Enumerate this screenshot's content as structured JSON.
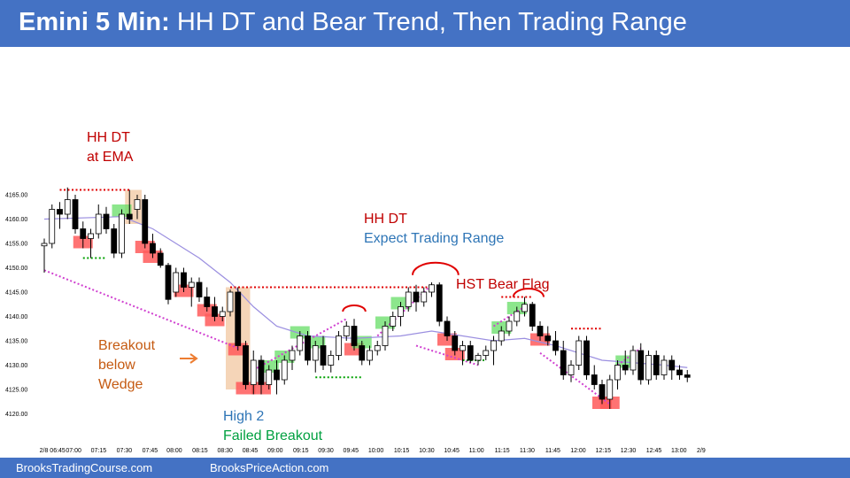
{
  "title": {
    "bold": "Emini 5 Min:",
    "rest": " HH DT and Bear Trend, Then Trading Range"
  },
  "footer": {
    "left": "BrooksTradingCourse.com",
    "right": "BrooksPriceAction.com"
  },
  "colors": {
    "banner": "#4472c4",
    "bull": "#ffffff",
    "bear": "#000000",
    "red_text": "#c00000",
    "blue_text": "#2e75b6",
    "green_text": "#00a040",
    "orange_text": "#c55a11",
    "red_box": "#ff5a5a",
    "green_box": "#66dd66",
    "ema": "#9b8fe0",
    "wedge_line": "#d040d0",
    "red_dots": "#e00000",
    "green_dots": "#00a000",
    "breakout_shade": "#f5d5b8"
  },
  "annotations": {
    "hh_dt_ema": [
      "HH DT",
      "at EMA"
    ],
    "hh_dt_range": {
      "line1": "HH DT",
      "line2": "Expect Trading Range"
    },
    "hst_bear_flag": "HST Bear Flag",
    "breakout_wedge": [
      "Breakout",
      "below",
      "Wedge"
    ],
    "high2": [
      "High 2",
      "Failed Breakout"
    ]
  },
  "chart_data": {
    "type": "candlestick",
    "title": "Emini 5 Min: HH DT and Bear Trend, Then Trading Range",
    "y_ticks": [
      "4120.00",
      "4125.00",
      "4130.00",
      "4135.00",
      "4140.00",
      "4145.00",
      "4150.00",
      "4155.00",
      "4160.00",
      "4165.00"
    ],
    "ylim": [
      4118,
      4172
    ],
    "x_ticks": [
      "2/8 06:45",
      "07:00",
      "07:15",
      "07:30",
      "07:45",
      "08:00",
      "08:15",
      "08:30",
      "08:45",
      "09:00",
      "09:15",
      "09:30",
      "09:45",
      "10:00",
      "10:15",
      "10:30",
      "10:45",
      "11:00",
      "11:15",
      "11:30",
      "11:45",
      "12:00",
      "12:15",
      "12:30",
      "12:45",
      "13:00",
      "2/9"
    ],
    "bars": [
      [
        4154.5,
        4156.0,
        4149.0,
        4155.0
      ],
      [
        4155.0,
        4163.0,
        4154.0,
        4162.0
      ],
      [
        4162.0,
        4163.5,
        4158.0,
        4161.0
      ],
      [
        4161.0,
        4166.5,
        4160.0,
        4164.0
      ],
      [
        4164.0,
        4165.0,
        4157.0,
        4158.0
      ],
      [
        4158.0,
        4159.5,
        4154.0,
        4156.0
      ],
      [
        4156.0,
        4158.0,
        4152.0,
        4157.0
      ],
      [
        4157.0,
        4163.0,
        4156.0,
        4161.0
      ],
      [
        4161.0,
        4162.5,
        4157.0,
        4158.0
      ],
      [
        4158.0,
        4159.0,
        4152.0,
        4153.0
      ],
      [
        4153.0,
        4162.0,
        4152.0,
        4161.0
      ],
      [
        4161.0,
        4166.0,
        4159.0,
        4160.0
      ],
      [
        4162.0,
        4165.0,
        4160.0,
        4164.0
      ],
      [
        4164.0,
        4165.0,
        4154.0,
        4155.0
      ],
      [
        4155.0,
        4157.0,
        4152.0,
        4153.0
      ],
      [
        4153.0,
        4154.0,
        4150.0,
        4150.5
      ],
      [
        4150.5,
        4151.0,
        4142.5,
        4143.5
      ],
      [
        4145.0,
        4150.0,
        4144.0,
        4149.0
      ],
      [
        4149.0,
        4150.0,
        4145.0,
        4146.0
      ],
      [
        4146.0,
        4148.0,
        4142.0,
        4147.0
      ],
      [
        4147.0,
        4148.0,
        4143.0,
        4144.0
      ],
      [
        4144.0,
        4146.0,
        4141.0,
        4142.0
      ],
      [
        4142.0,
        4144.0,
        4139.0,
        4140.0
      ],
      [
        4140.0,
        4142.0,
        4139.0,
        4141.0
      ],
      [
        4141.0,
        4145.5,
        4140.0,
        4145.0
      ],
      [
        4145.0,
        4146.0,
        4133.0,
        4134.0
      ],
      [
        4134.0,
        4135.0,
        4125.0,
        4126.0
      ],
      [
        4126.0,
        4133.0,
        4124.0,
        4131.0
      ],
      [
        4131.0,
        4132.0,
        4124.0,
        4126.0
      ],
      [
        4126.0,
        4130.0,
        4125.0,
        4129.0
      ],
      [
        4129.0,
        4131.0,
        4124.0,
        4127.0
      ],
      [
        4127.0,
        4132.0,
        4126.0,
        4131.0
      ],
      [
        4131.0,
        4134.0,
        4129.0,
        4133.0
      ],
      [
        4133.0,
        4137.0,
        4132.0,
        4136.0
      ],
      [
        4136.0,
        4137.0,
        4130.0,
        4131.0
      ],
      [
        4131.0,
        4135.0,
        4128.5,
        4134.0
      ],
      [
        4134.0,
        4136.0,
        4129.0,
        4130.0
      ],
      [
        4130.0,
        4133.0,
        4128.5,
        4132.0
      ],
      [
        4132.0,
        4137.0,
        4131.0,
        4136.0
      ],
      [
        4136.0,
        4139.0,
        4135.0,
        4138.0
      ],
      [
        4138.0,
        4139.5,
        4133.0,
        4134.0
      ],
      [
        4134.0,
        4135.0,
        4130.0,
        4131.0
      ],
      [
        4131.0,
        4134.0,
        4130.0,
        4133.0
      ],
      [
        4133.0,
        4135.0,
        4132.0,
        4134.0
      ],
      [
        4134.0,
        4139.0,
        4133.0,
        4138.0
      ],
      [
        4138.0,
        4141.0,
        4137.0,
        4140.0
      ],
      [
        4140.0,
        4143.0,
        4138.0,
        4142.0
      ],
      [
        4142.0,
        4146.0,
        4141.0,
        4145.0
      ],
      [
        4145.0,
        4146.5,
        4141.0,
        4143.0
      ],
      [
        4143.0,
        4146.0,
        4142.0,
        4145.0
      ],
      [
        4145.0,
        4147.0,
        4144.0,
        4146.5
      ],
      [
        4146.5,
        4147.0,
        4138.0,
        4139.0
      ],
      [
        4139.0,
        4140.0,
        4135.0,
        4136.0
      ],
      [
        4136.0,
        4137.0,
        4132.0,
        4133.0
      ],
      [
        4133.0,
        4135.0,
        4130.0,
        4134.0
      ],
      [
        4134.0,
        4135.0,
        4130.5,
        4131.0
      ],
      [
        4131.0,
        4132.5,
        4130.0,
        4132.0
      ],
      [
        4132.0,
        4134.0,
        4131.0,
        4133.0
      ],
      [
        4133.0,
        4136.0,
        4130.0,
        4135.0
      ],
      [
        4135.0,
        4138.0,
        4134.0,
        4137.0
      ],
      [
        4137.0,
        4140.0,
        4136.0,
        4139.0
      ],
      [
        4139.0,
        4142.0,
        4138.0,
        4141.0
      ],
      [
        4141.0,
        4144.0,
        4140.0,
        4142.5
      ],
      [
        4142.5,
        4143.0,
        4137.0,
        4138.0
      ],
      [
        4138.0,
        4139.0,
        4135.0,
        4136.0
      ],
      [
        4136.0,
        4138.0,
        4134.0,
        4135.0
      ],
      [
        4135.0,
        4137.0,
        4132.0,
        4133.0
      ],
      [
        4133.0,
        4135.0,
        4127.0,
        4128.0
      ],
      [
        4128.0,
        4131.0,
        4126.5,
        4130.0
      ],
      [
        4130.0,
        4136.0,
        4129.0,
        4135.0
      ],
      [
        4135.0,
        4136.0,
        4127.0,
        4128.0
      ],
      [
        4128.0,
        4130.0,
        4125.0,
        4126.0
      ],
      [
        4126.0,
        4127.0,
        4122.0,
        4123.0
      ],
      [
        4123.0,
        4128.0,
        4121.0,
        4127.0
      ],
      [
        4127.0,
        4131.0,
        4125.0,
        4130.0
      ],
      [
        4130.0,
        4133.0,
        4128.0,
        4129.0
      ],
      [
        4129.0,
        4134.0,
        4128.0,
        4133.0
      ],
      [
        4133.0,
        4134.5,
        4126.0,
        4127.0
      ],
      [
        4127.0,
        4133.0,
        4126.0,
        4132.0
      ],
      [
        4132.0,
        4133.0,
        4127.0,
        4128.0
      ],
      [
        4128.0,
        4132.0,
        4127.0,
        4131.0
      ],
      [
        4131.0,
        4132.0,
        4127.0,
        4129.0
      ],
      [
        4129.0,
        4130.0,
        4127.0,
        4128.0
      ],
      [
        4128.0,
        4129.0,
        4126.5,
        4127.5
      ]
    ],
    "ema": [
      [
        0,
        4160.0
      ],
      [
        10,
        4160.5
      ],
      [
        14,
        4158.0
      ],
      [
        20,
        4152.0
      ],
      [
        24,
        4147.0
      ],
      [
        27,
        4142.0
      ],
      [
        30,
        4138.0
      ],
      [
        34,
        4136.0
      ],
      [
        40,
        4135.5
      ],
      [
        46,
        4136.0
      ],
      [
        50,
        4137.0
      ],
      [
        54,
        4136.0
      ],
      [
        58,
        4135.0
      ],
      [
        62,
        4135.5
      ],
      [
        66,
        4134.0
      ],
      [
        72,
        4131.0
      ],
      [
        76,
        4130.5
      ],
      [
        80,
        4130.0
      ],
      [
        83,
        4129.5
      ]
    ],
    "bull_entry_boxes": [
      10,
      29,
      31,
      33,
      35,
      41,
      44,
      46,
      59,
      61,
      75
    ],
    "bear_entry_boxes": [
      5,
      13,
      14,
      18,
      21,
      22,
      25,
      26,
      28,
      40,
      52,
      53,
      64,
      72,
      73
    ],
    "wedge_lines": [
      [
        [
          0,
          4149.5
        ],
        [
          25,
          4133.5
        ]
      ],
      [
        [
          27,
          4129.0
        ],
        [
          39,
          4139.5
        ]
      ],
      [
        [
          43,
          4136.0
        ],
        [
          50,
          4146.5
        ]
      ],
      [
        [
          48,
          4134.0
        ],
        [
          56,
          4130.0
        ]
      ],
      [
        [
          58,
          4138.0
        ],
        [
          62,
          4142.0
        ]
      ],
      [
        [
          64,
          4132.5
        ],
        [
          73,
          4122.0
        ]
      ],
      [
        [
          74,
          4130.0
        ],
        [
          77,
          4133.5
        ]
      ]
    ],
    "red_dotted_lines": [
      [
        [
          2,
          4166.0
        ],
        [
          11,
          4166.0
        ]
      ],
      [
        [
          24,
          4146.0
        ],
        [
          50,
          4146.0
        ]
      ],
      [
        [
          59,
          4144.0
        ],
        [
          63,
          4144.0
        ]
      ],
      [
        [
          68,
          4137.5
        ],
        [
          72,
          4137.5
        ]
      ]
    ],
    "green_dotted_lines": [
      [
        [
          5,
          4152.0
        ],
        [
          8,
          4152.0
        ]
      ],
      [
        [
          35,
          4127.5
        ],
        [
          41,
          4127.5
        ]
      ],
      [
        [
          54,
          4131.0
        ],
        [
          57,
          4131.0
        ]
      ]
    ],
    "arcs": [
      [
        39,
        41,
        4141.0
      ],
      [
        48,
        53,
        4148.5
      ],
      [
        61,
        64,
        4144.0
      ]
    ],
    "shaded_ranges": [
      [
        11,
        12
      ],
      [
        24,
        26
      ]
    ]
  }
}
